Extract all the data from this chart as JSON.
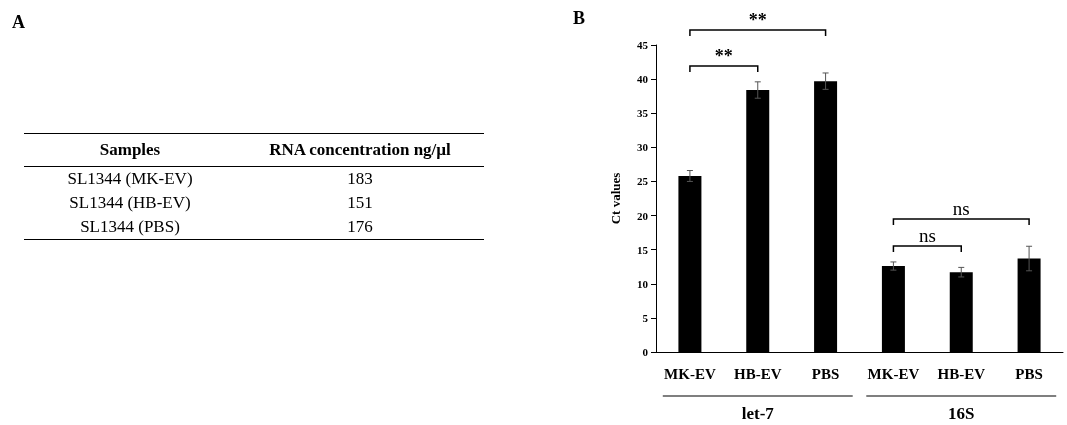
{
  "chart_data": [
    {
      "type": "other",
      "title": "A",
      "annotations": [
        "Samples",
        "RNA concentration ng/µl",
        "SL1344 (MK-EV)",
        "183",
        "SL1344 (HB-EV)",
        "151",
        "SL1344 (PBS)",
        "176"
      ]
    },
    {
      "type": "bar",
      "title": "B",
      "ylabel": "Ct values",
      "categories": [
        "MK-EV",
        "HB-EV",
        "PBS",
        "MK-EV",
        "HB-EV",
        "PBS"
      ],
      "values": [
        25.8,
        38.4,
        39.7,
        12.6,
        11.7,
        13.7
      ],
      "errors": [
        0.8,
        1.2,
        1.2,
        0.6,
        0.7,
        1.8
      ],
      "color": "#000000",
      "ylim": [
        0,
        45
      ],
      "yticks": [
        0,
        5,
        10,
        15,
        20,
        25,
        30,
        35,
        40,
        45
      ],
      "grid": false,
      "annotations": [
        "**",
        "**",
        "ns",
        "ns",
        "let-7",
        "16S"
      ]
    }
  ]
}
